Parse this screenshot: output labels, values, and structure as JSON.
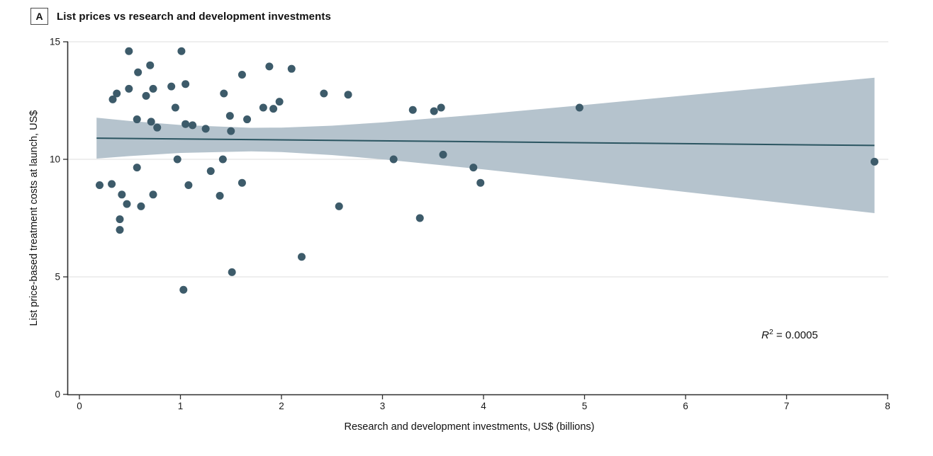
{
  "header": {
    "panel_label": "A",
    "title": "List prices vs research and development investments"
  },
  "chart_data": {
    "type": "scatter",
    "title": "List prices vs research and development investments",
    "xlabel": "Research and development investments, US$ (billions)",
    "ylabel": "List price-based treatment costs at launch, US$",
    "xlim": [
      0,
      8
    ],
    "ylim": [
      0,
      15
    ],
    "xticks": [
      0,
      1,
      2,
      3,
      4,
      5,
      6,
      7,
      8
    ],
    "yticks": [
      0,
      5,
      10,
      15
    ],
    "grid": "horizontal gridlines at y = 5, 10, 15; legend none",
    "annotation": {
      "symbol": "R",
      "exponent": "2",
      "rest": " = 0.0005"
    },
    "points": [
      [
        0.49,
        14.6
      ],
      [
        1.01,
        14.6
      ],
      [
        0.7,
        14.0
      ],
      [
        1.88,
        13.95
      ],
      [
        2.1,
        13.85
      ],
      [
        0.58,
        13.7
      ],
      [
        1.61,
        13.6
      ],
      [
        1.05,
        13.2
      ],
      [
        0.91,
        13.1
      ],
      [
        0.49,
        13.0
      ],
      [
        0.73,
        13.0
      ],
      [
        0.37,
        12.8
      ],
      [
        1.43,
        12.8
      ],
      [
        2.42,
        12.8
      ],
      [
        2.66,
        12.75
      ],
      [
        0.66,
        12.7
      ],
      [
        0.33,
        12.55
      ],
      [
        1.98,
        12.45
      ],
      [
        0.95,
        12.2
      ],
      [
        1.82,
        12.2
      ],
      [
        3.58,
        12.2
      ],
      [
        4.95,
        12.2
      ],
      [
        1.92,
        12.15
      ],
      [
        3.3,
        12.1
      ],
      [
        3.51,
        12.05
      ],
      [
        1.49,
        11.85
      ],
      [
        0.57,
        11.7
      ],
      [
        1.66,
        11.7
      ],
      [
        0.71,
        11.6
      ],
      [
        1.05,
        11.5
      ],
      [
        1.12,
        11.45
      ],
      [
        0.77,
        11.35
      ],
      [
        1.25,
        11.3
      ],
      [
        1.5,
        11.2
      ],
      [
        3.6,
        10.2
      ],
      [
        0.97,
        10.0
      ],
      [
        1.42,
        10.0
      ],
      [
        3.11,
        10.0
      ],
      [
        7.87,
        9.9
      ],
      [
        0.57,
        9.65
      ],
      [
        3.9,
        9.65
      ],
      [
        1.3,
        9.5
      ],
      [
        1.61,
        9.0
      ],
      [
        3.97,
        9.0
      ],
      [
        0.32,
        8.95
      ],
      [
        0.2,
        8.9
      ],
      [
        1.08,
        8.9
      ],
      [
        0.42,
        8.5
      ],
      [
        0.73,
        8.5
      ],
      [
        1.39,
        8.45
      ],
      [
        0.47,
        8.1
      ],
      [
        0.61,
        8.0
      ],
      [
        2.57,
        8.0
      ],
      [
        3.37,
        7.5
      ],
      [
        0.4,
        7.45
      ],
      [
        0.4,
        7.0
      ],
      [
        2.2,
        5.85
      ],
      [
        1.51,
        5.2
      ],
      [
        1.03,
        4.45
      ]
    ],
    "regression": {
      "r_squared": "0.0005",
      "line": [
        [
          0.17,
          10.9
        ],
        [
          7.87,
          10.59
        ]
      ],
      "band": {
        "x": [
          0.17,
          0.5,
          1,
          1.7,
          2,
          2.5,
          3,
          4,
          5,
          6,
          7,
          7.87
        ],
        "upper": [
          11.77,
          11.63,
          11.46,
          11.34,
          11.35,
          11.43,
          11.57,
          11.92,
          12.31,
          12.72,
          13.12,
          13.47
        ],
        "lower": [
          10.03,
          10.14,
          10.27,
          10.34,
          10.31,
          10.18,
          10.0,
          9.57,
          9.1,
          8.61,
          8.13,
          7.71
        ]
      }
    },
    "colors": {
      "point": "#3d5b6a",
      "line": "#2b5561",
      "band": "#b5c3cd",
      "grid": "#dcdcdc",
      "axis": "#2e2e2e",
      "text": "#1a1a1a"
    }
  }
}
